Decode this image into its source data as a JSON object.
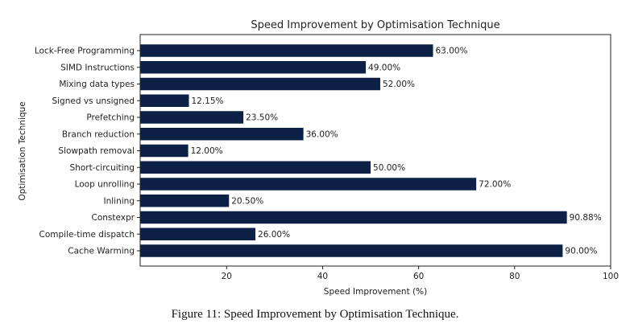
{
  "caption": "Figure 11: Speed Improvement by Optimisation Technique.",
  "colors": {
    "bar": "#0d2147",
    "axis": "#222222",
    "text": "#222222"
  },
  "chart_data": {
    "type": "bar",
    "orientation": "horizontal",
    "title": "Speed Improvement by Optimisation Technique",
    "xlabel": "Speed Improvement (%)",
    "ylabel": "Optimisation Technique",
    "xlim": [
      2,
      100
    ],
    "xticks": [
      20,
      40,
      60,
      80,
      100
    ],
    "grid": false,
    "categories": [
      "Lock-Free Programming",
      "SIMD Instructions",
      "Mixing data types",
      "Signed vs unsigned",
      "Prefetching",
      "Branch reduction",
      "Slowpath removal",
      "Short-circuiting",
      "Loop unrolling",
      "Inlining",
      "Constexpr",
      "Compile-time dispatch",
      "Cache Warming"
    ],
    "values": [
      63.0,
      49.0,
      52.0,
      12.15,
      23.5,
      36.0,
      12.0,
      50.0,
      72.0,
      20.5,
      90.88,
      26.0,
      90.0
    ],
    "data_labels": [
      "63.00%",
      "49.00%",
      "52.00%",
      "12.15%",
      "23.50%",
      "36.00%",
      "12.00%",
      "50.00%",
      "72.00%",
      "20.50%",
      "90.88%",
      "26.00%",
      "90.00%"
    ]
  }
}
